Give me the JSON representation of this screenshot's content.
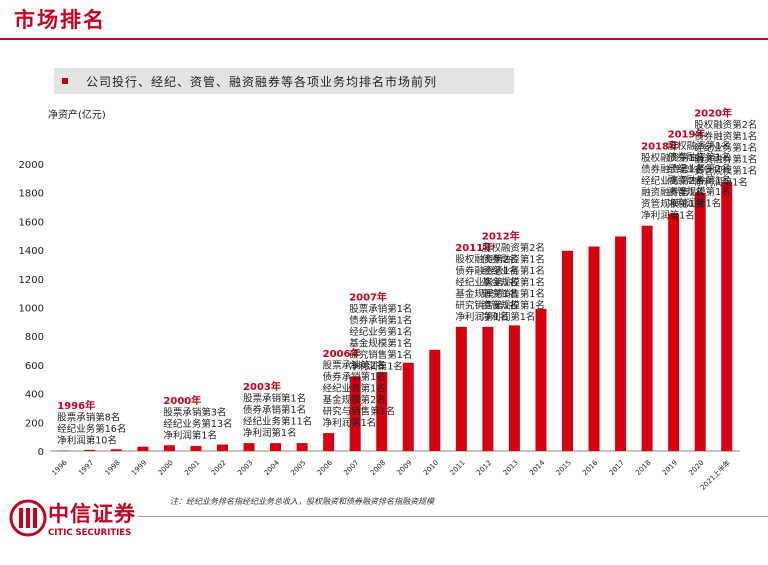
{
  "header": {
    "title": "市场排名"
  },
  "banner": {
    "text": "公司投行、经纪、资管、融资融券等各项业务均排名市场前列"
  },
  "footnote": "注：经纪业务排名指经纪业务总收入，股权融资和债券融资排名指融资规模",
  "logo": {
    "cn": "中信证券",
    "en": "CITIC SECURITIES"
  },
  "colors": {
    "accent": "#c8001e",
    "bar": "#d7000f"
  },
  "chart_data": {
    "type": "bar",
    "ylabel": "净资产(亿元)",
    "ylim": [
      0,
      2000
    ],
    "yticks": [
      0,
      200,
      400,
      600,
      800,
      1000,
      1200,
      1400,
      1600,
      1800,
      2000
    ],
    "categories": [
      "1996",
      "1997",
      "1998",
      "1999",
      "2000",
      "2001",
      "2002",
      "2003",
      "2004",
      "2005",
      "2006",
      "2007",
      "2008",
      "2009",
      "2010",
      "2011",
      "2012",
      "2013",
      "2014",
      "2015",
      "2016",
      "2017",
      "2018",
      "2019",
      "2020",
      "2021上半年"
    ],
    "values": [
      3,
      8,
      12,
      30,
      40,
      35,
      45,
      55,
      55,
      55,
      125,
      520,
      550,
      615,
      705,
      865,
      865,
      875,
      990,
      1395,
      1425,
      1495,
      1570,
      1655,
      1800,
      1875
    ],
    "annotations": [
      {
        "year": "1996年",
        "category": "1996",
        "lines": [
          "股票承销第8名",
          "经纪业务第16名",
          "净利润第10名"
        ]
      },
      {
        "year": "2000年",
        "category": "2000",
        "lines": [
          "股票承销第3名",
          "经纪业务第13名",
          "净利润第1名"
        ]
      },
      {
        "year": "2003年",
        "category": "2003",
        "lines": [
          "股票承销第1名",
          "债券承销第1名",
          "经纪业务第11名",
          "净利润第1名"
        ]
      },
      {
        "year": "2006年",
        "category": "2006",
        "lines": [
          "股票承销第2名",
          "债券承销第1名",
          "经纪业务第1名",
          "基金规模第2名",
          "研究与销售第1名",
          "净利润第1名"
        ]
      },
      {
        "year": "2007年",
        "category": "2007",
        "lines": [
          "股票承销第1名",
          "债券承销第1名",
          "经纪业务第1名",
          "基金规模第1名",
          "研究销售第1名",
          "净利润第1名"
        ]
      },
      {
        "year": "2011年",
        "category": "2011",
        "lines": [
          "股权融资第2名",
          "债券融资第1名",
          "经纪业务第1名",
          "基金规模第1名",
          "研究销售第1名",
          "净利润第1名"
        ]
      },
      {
        "year": "2012年",
        "category": "2012",
        "lines": [
          "股权融资第2名",
          "债券融资第1名",
          "经纪业务第1名",
          "基金规模第1名",
          "研究销售第1名",
          "资管规模第1名",
          "净利润第1名"
        ]
      },
      {
        "year": "2018年",
        "category": "2018",
        "lines": [
          "股权融资第1名",
          "债券融资第1名",
          "经纪业务第2名",
          "融资融券第1名",
          "资管规模第1名",
          "净利润第1名"
        ]
      },
      {
        "year": "2019年",
        "category": "2019",
        "lines": [
          "股权融资第1名",
          "债券融资第1名",
          "经纪业务第2名",
          "融资融券第1名",
          "资管规模第1名",
          "净利润第1名"
        ]
      },
      {
        "year": "2020年",
        "category": "2020",
        "lines": [
          "股权融资第2名",
          "债券融资第1名",
          "经纪业务第1名",
          "融资融券第1名",
          "资管规模第1名",
          "净利润第1名"
        ]
      }
    ]
  }
}
